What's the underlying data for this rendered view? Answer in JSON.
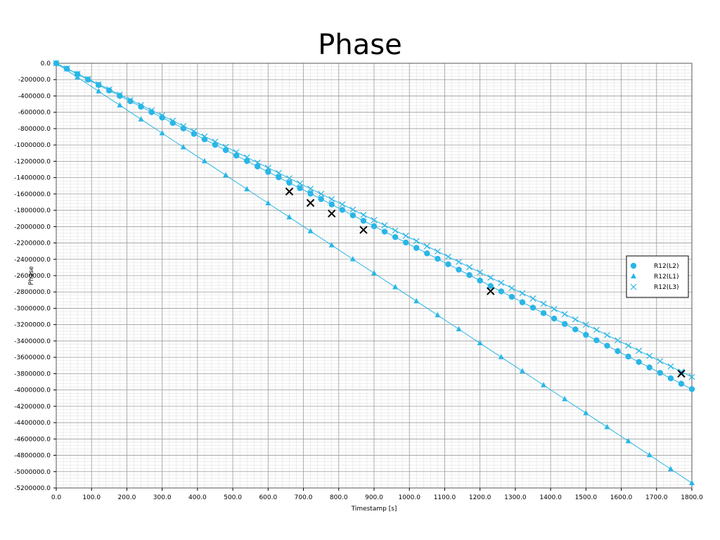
{
  "chart_data": {
    "type": "scatter",
    "title": "Phase",
    "xlabel": "Timestamp [s]",
    "ylabel": "Phase",
    "xlim": [
      0,
      1800
    ],
    "ylim": [
      -5200000,
      0
    ],
    "x_ticks": [
      "0.0",
      "100.0",
      "200.0",
      "300.0",
      "400.0",
      "500.0",
      "600.0",
      "700.0",
      "800.0",
      "900.0",
      "1000.0",
      "1100.0",
      "1200.0",
      "1300.0",
      "1400.0",
      "1500.0",
      "1600.0",
      "1700.0",
      "1800.0"
    ],
    "y_ticks": [
      "0.0",
      "-200000.0",
      "-400000.0",
      "-600000.0",
      "-800000.0",
      "-1000000.0",
      "-1200000.0",
      "-1400000.0",
      "-1600000.0",
      "-1800000.0",
      "-2000000.0",
      "-2200000.0",
      "-2400000.0",
      "-2600000.0",
      "-2800000.0",
      "-3000000.0",
      "-3200000.0",
      "-3400000.0",
      "-3600000.0",
      "-3800000.0",
      "-4000000.0",
      "-4200000.0",
      "-4400000.0",
      "-4600000.0",
      "-4800000.0",
      "-5000000.0",
      "-5200000.0"
    ],
    "grid": true,
    "legend_position": "right",
    "series_color": "#29b6e6",
    "highlight_color": "#000000",
    "series": [
      {
        "name": "R12(L2)",
        "marker": "circle",
        "x_start": 0,
        "x_step": 30,
        "x_end": 1800,
        "y_start": 0,
        "y_end": -3990000
      },
      {
        "name": "R12(L1)",
        "marker": "triangle",
        "x_start": 0,
        "x_step": 60,
        "x_end": 1800,
        "y_start": 0,
        "y_end": -5140000
      },
      {
        "name": "R12(L3)",
        "marker": "x",
        "x_start": 0,
        "x_step": 30,
        "x_end": 1800,
        "y_start": 0,
        "y_end": -3840000
      }
    ],
    "highlighted_points": [
      {
        "x": 660,
        "y": -1570000
      },
      {
        "x": 720,
        "y": -1710000
      },
      {
        "x": 780,
        "y": -1840000
      },
      {
        "x": 870,
        "y": -2040000
      },
      {
        "x": 1230,
        "y": -2790000
      },
      {
        "x": 1770,
        "y": -3800000
      }
    ]
  }
}
